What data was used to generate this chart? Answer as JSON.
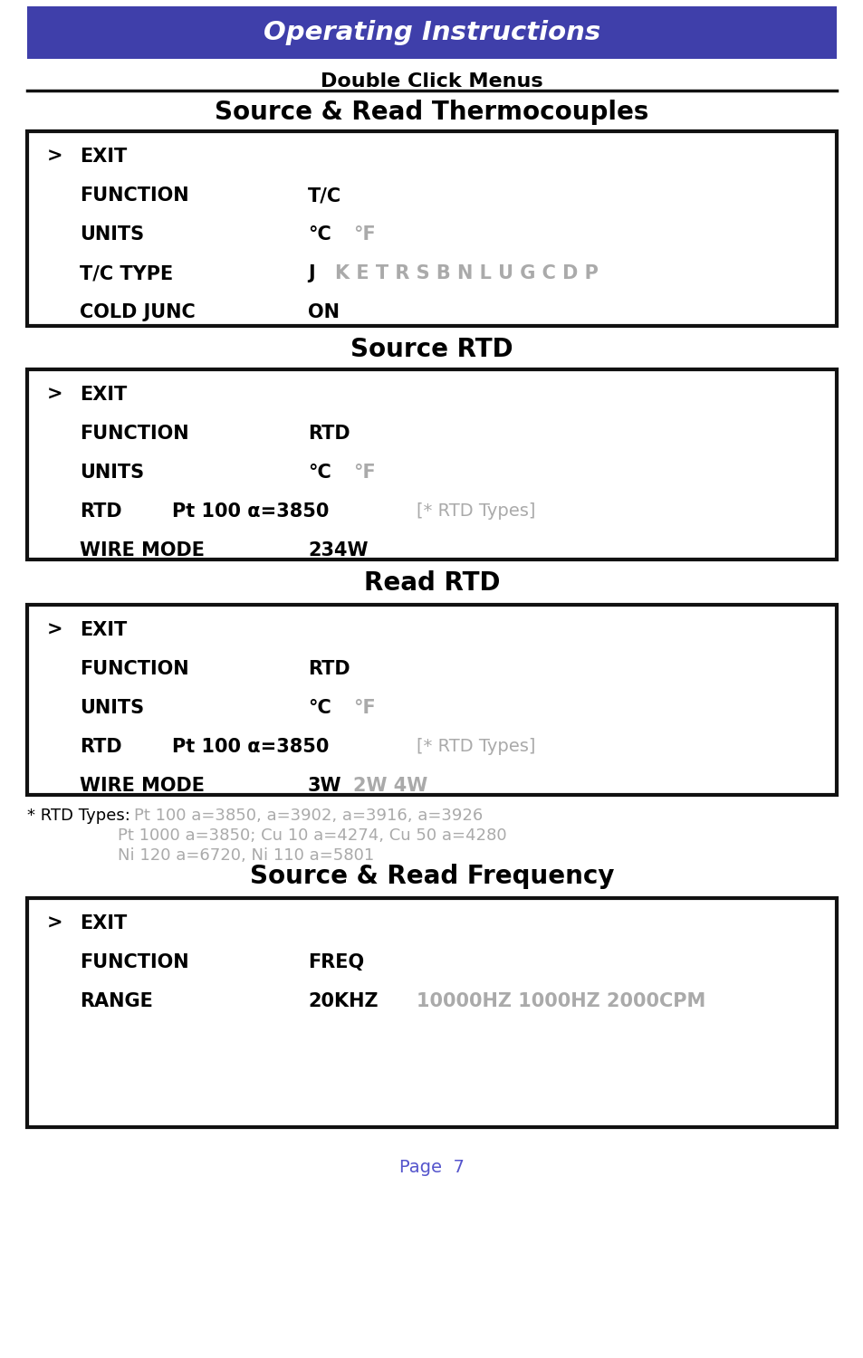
{
  "title": "Operating Instructions",
  "subtitle": "Double Click Menus",
  "header_bg": "#3f3faa",
  "header_text_color": "#ffffff",
  "bg_color": "#ffffff",
  "page_color": "#5555cc",
  "section1_title": "Source & Read Thermocouples",
  "section2_title": "Source RTD",
  "section3_title": "Read RTD",
  "section4_title": "Source & Read Frequency",
  "rtd_note_line1_black": "* RTD Types: ",
  "rtd_note_line1_gray": "Pt 100 a=3850, a=3902, a=3916, a=3926",
  "rtd_note_line2": "Pt 1000 a=3850; Cu 10 a=4274, Cu 50 a=4280",
  "rtd_note_line3": "Ni 120 a=6720, Ni 110 a=5801",
  "page_text": "Page  7"
}
